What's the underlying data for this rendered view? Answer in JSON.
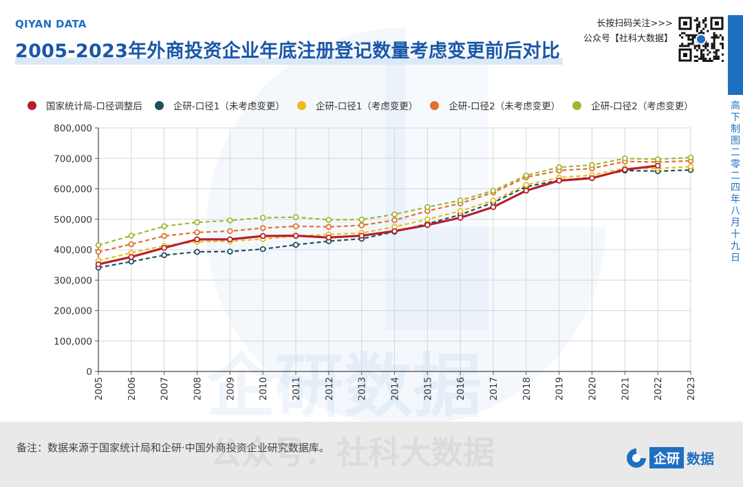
{
  "header": {
    "brand": "QIYAN DATA",
    "title": "2005-2023年外商投资企业年底注册登记数量考虑变更前后对比",
    "qr_line1": "长按扫码关注>>>",
    "qr_line2": "公众号【社科大数据】"
  },
  "side": {
    "vertical_text": "高下制图 二零二四年八月十九日"
  },
  "footer": {
    "note": "备注：数据来源于国家统计局和企研·中国外商投资企业研究数据库。",
    "logo_box": "企研",
    "logo_text": "数据"
  },
  "watermark": {
    "main": "企研数据",
    "sub": "公众号：社科大数据"
  },
  "chart_data": {
    "type": "line",
    "x": [
      2005,
      2006,
      2007,
      2008,
      2009,
      2010,
      2011,
      2012,
      2013,
      2014,
      2015,
      2016,
      2017,
      2018,
      2019,
      2020,
      2021,
      2022,
      2023
    ],
    "ylim": [
      0,
      800000
    ],
    "yticks": [
      "0",
      "100,000",
      "200,000",
      "300,000",
      "400,000",
      "500,000",
      "600,000",
      "700,000",
      "800,000"
    ],
    "grid": true,
    "legend_position": "top",
    "series": [
      {
        "name": "国家统计局-口径调整后",
        "color": "#b5202a",
        "style": "solid",
        "values": [
          352000,
          376000,
          406000,
          434000,
          434000,
          445000,
          446000,
          440000,
          446000,
          461000,
          481000,
          505000,
          540000,
          594000,
          627000,
          635000,
          663000,
          676000,
          null
        ]
      },
      {
        "name": "企研-口径1（未考虑变更）",
        "color": "#1d4f5c",
        "style": "dashed",
        "values": [
          341000,
          361000,
          382000,
          393000,
          394000,
          402000,
          416000,
          428000,
          436000,
          459000,
          485000,
          515000,
          555000,
          607000,
          628000,
          637000,
          660000,
          658000,
          662000
        ]
      },
      {
        "name": "企研-口径1（考虑变更）",
        "color": "#ebbb1a",
        "style": "dashed",
        "values": [
          364000,
          390000,
          413000,
          426000,
          428000,
          435000,
          445000,
          450000,
          455000,
          475000,
          500000,
          527000,
          562000,
          613000,
          637000,
          645000,
          668000,
          667000,
          673000
        ]
      },
      {
        "name": "企研-口径2（未考虑变更）",
        "color": "#e0702a",
        "style": "dashed",
        "values": [
          393000,
          418000,
          445000,
          457000,
          461000,
          471000,
          477000,
          475000,
          480000,
          497000,
          527000,
          552000,
          588000,
          638000,
          660000,
          667000,
          690000,
          688000,
          692000
        ]
      },
      {
        "name": "企研-口径2（考虑变更）",
        "color": "#a2b631",
        "style": "dashed",
        "values": [
          415000,
          446000,
          477000,
          490000,
          496000,
          505000,
          507000,
          498000,
          499000,
          516000,
          540000,
          562000,
          594000,
          644000,
          671000,
          678000,
          700000,
          697000,
          703000
        ]
      }
    ]
  }
}
